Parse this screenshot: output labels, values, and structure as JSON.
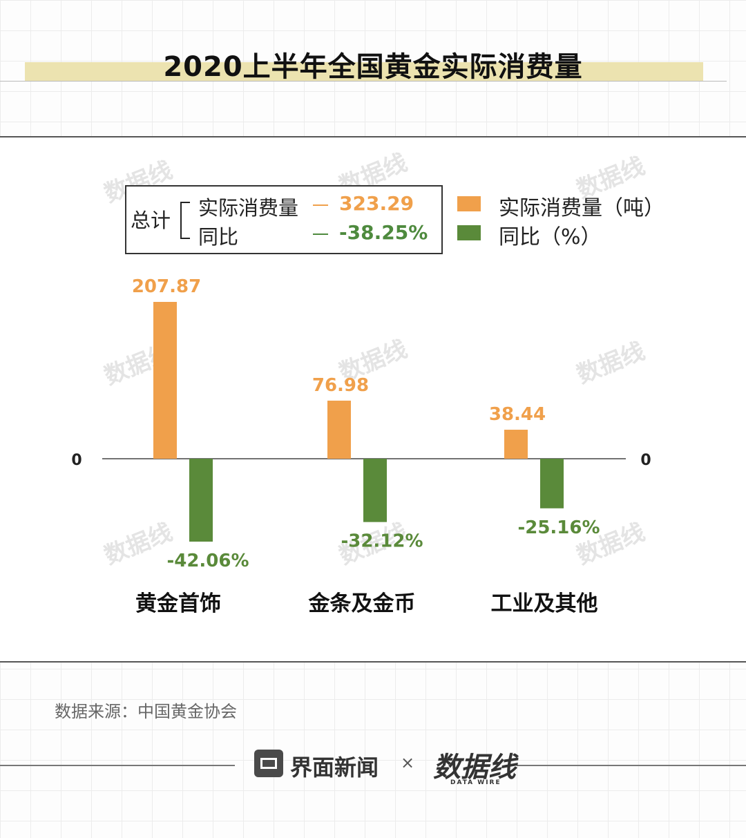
{
  "title": "2020上半年全国黄金实际消费量",
  "summary": {
    "total_label": "总计",
    "rows": [
      {
        "label": "实际消费量",
        "value": "323.29",
        "color": "#f0a04b"
      },
      {
        "label": "同比",
        "value": "-38.25%",
        "color": "#4e8a3e"
      }
    ]
  },
  "legend": [
    {
      "label": "实际消费量（吨）",
      "color": "#f0a04b"
    },
    {
      "label": "同比（%）",
      "color": "#5a8a3a"
    }
  ],
  "watermark_text": "数据线",
  "source": "数据来源：中国黄金协会",
  "footer": {
    "brand": "界面新闻",
    "times": "×",
    "logo": "数据线",
    "logo_sub": "DATA WIRE"
  },
  "chart_data": {
    "type": "bar",
    "title": "2020上半年全国黄金实际消费量",
    "categories": [
      "黄金首饰",
      "金条及金币",
      "工业及其他"
    ],
    "series": [
      {
        "name": "实际消费量（吨）",
        "values": [
          207.87,
          76.98,
          38.44
        ],
        "labels": [
          "207.87",
          "76.98",
          "38.44"
        ],
        "color": "#f0a04b",
        "axis": "left"
      },
      {
        "name": "同比（%）",
        "values": [
          -42.06,
          -32.12,
          -25.16
        ],
        "labels": [
          "-42.06%",
          "-32.12%",
          "-25.16%"
        ],
        "color": "#5a8a3a",
        "axis": "right"
      }
    ],
    "left_zero_label": "0",
    "right_zero_label": "0",
    "grid": false,
    "legend_position": "top-right"
  }
}
